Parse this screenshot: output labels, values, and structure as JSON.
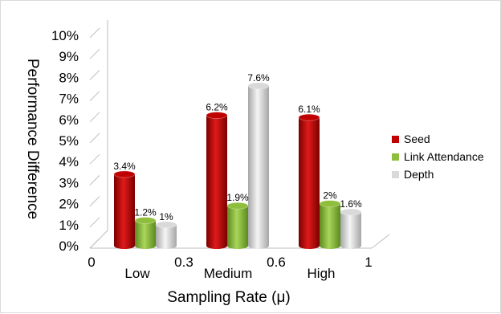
{
  "chart_data": {
    "type": "bar",
    "style": "3d-cylinder",
    "categories": [
      "Low",
      "Medium",
      "High"
    ],
    "series": [
      {
        "name": "Seed",
        "values": [
          3.4,
          6.2,
          6.1
        ],
        "labels": [
          "3.4%",
          "6.2%",
          "6.1%"
        ],
        "color": "#c00000"
      },
      {
        "name": "Link Attendance",
        "values": [
          1.2,
          1.9,
          2.0
        ],
        "labels": [
          "1.2%",
          "1.9%",
          "2%"
        ],
        "color": "#8fbe3c"
      },
      {
        "name": "Depth",
        "values": [
          1.0,
          7.6,
          1.6
        ],
        "labels": [
          "1%",
          "7.6%",
          "1.6%"
        ],
        "color": "#d9d9d9"
      }
    ],
    "ylabel": "Performance Difference",
    "xlabel": "Sampling Rate (μ)",
    "ylim": [
      0,
      10
    ],
    "y_ticks": [
      "0%",
      "1%",
      "2%",
      "3%",
      "4%",
      "5%",
      "6%",
      "7%",
      "8%",
      "9%",
      "10%"
    ],
    "x_ticks": [
      "0",
      "0.3",
      "0.6",
      "1"
    ],
    "grid": false,
    "legend": "right"
  }
}
